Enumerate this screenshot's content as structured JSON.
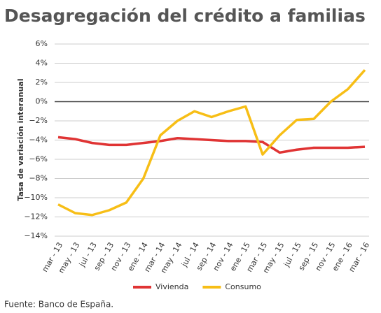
{
  "chart_data": {
    "type": "line",
    "title": "Desagregación del crédito a familias",
    "y_label": "Tasa de variación interanual",
    "source": "Fuente: Banco de España.",
    "categories": [
      "mar - 13",
      "may - 13",
      "jul - 13",
      "sep - 13",
      "nov - 13",
      "ene - 14",
      "mar - 14",
      "may - 14",
      "jul - 14",
      "sep - 14",
      "nov - 14",
      "ene - 15",
      "mar - 15",
      "may - 15",
      "jul - 15",
      "sep - 15",
      "nov - 15",
      "ene - 16",
      "mar - 16"
    ],
    "series": [
      {
        "name": "Vivienda",
        "color": "#e03434",
        "values": [
          -3.7,
          -3.9,
          -4.3,
          -4.5,
          -4.5,
          -4.3,
          -4.1,
          -3.8,
          -3.9,
          -4.0,
          -4.1,
          -4.1,
          -4.2,
          -5.3,
          -5.0,
          -4.8,
          -4.8,
          -4.8,
          -4.7
        ]
      },
      {
        "name": "Consumo",
        "color": "#f7be16",
        "values": [
          -10.7,
          -11.6,
          -11.8,
          -11.3,
          -10.5,
          -8.0,
          -3.5,
          -2.0,
          -1.0,
          -1.6,
          -1.0,
          -0.5,
          -5.5,
          -3.5,
          -1.9,
          -1.8,
          0.0,
          1.3,
          3.3
        ]
      }
    ],
    "ylim": [
      -14,
      6
    ],
    "yticks": [
      {
        "value": 6,
        "label": "6%"
      },
      {
        "value": 4,
        "label": "4%"
      },
      {
        "value": 2,
        "label": "2%"
      },
      {
        "value": 0,
        "label": "0%"
      },
      {
        "value": -2,
        "label": "−2%"
      },
      {
        "value": -4,
        "label": "−4%"
      },
      {
        "value": -6,
        "label": "−6%"
      },
      {
        "value": -8,
        "label": "−8%"
      },
      {
        "value": -10,
        "label": "−10%"
      },
      {
        "value": -12,
        "label": "−12%"
      },
      {
        "value": -14,
        "label": "−14%"
      }
    ],
    "grid": true,
    "legend": "bottom"
  }
}
